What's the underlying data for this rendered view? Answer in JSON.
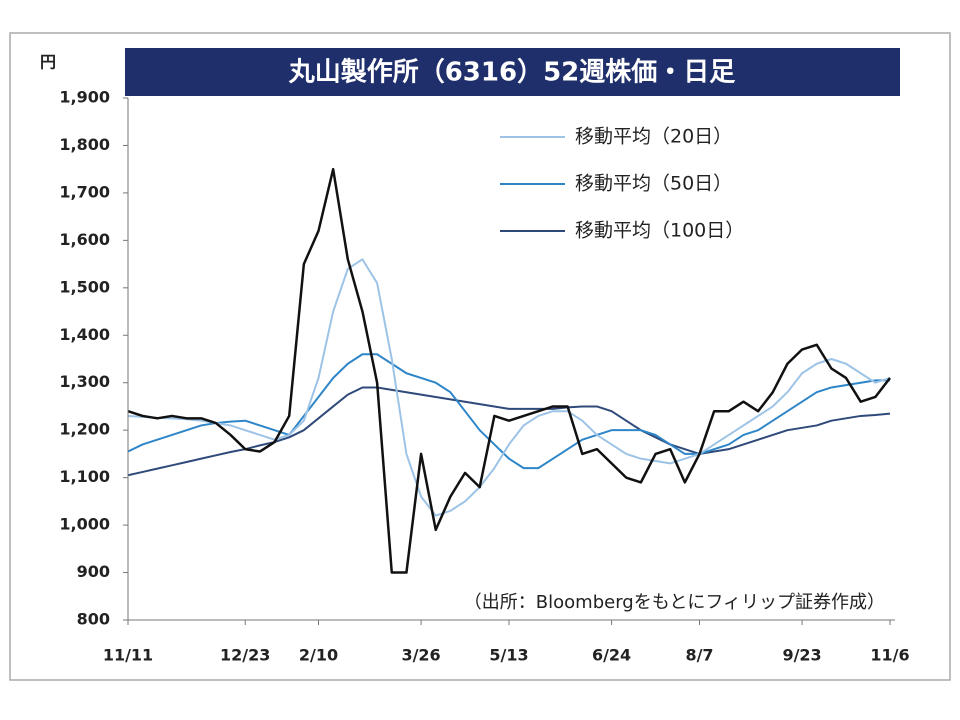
{
  "chart_data": {
    "type": "line",
    "title": "丸山製作所（6316）52週株価・日足",
    "y_unit": "円",
    "note": "（出所：Bloombergをもとにフィリップ証券作成）",
    "legend": "upper right",
    "categories": [
      "11/11",
      null,
      null,
      null,
      null,
      null,
      null,
      null,
      "12/23",
      null,
      null,
      null,
      null,
      "2/10",
      null,
      null,
      null,
      null,
      null,
      null,
      "3/26",
      null,
      null,
      null,
      null,
      null,
      "5/13",
      null,
      null,
      null,
      null,
      null,
      null,
      "6/24",
      null,
      null,
      null,
      null,
      null,
      "8/7",
      null,
      null,
      null,
      null,
      null,
      null,
      "9/23",
      null,
      null,
      null,
      null,
      null,
      "11/6"
    ],
    "ylim": [
      800,
      1900
    ],
    "yticks": [
      800,
      900,
      {
        "value": 1000,
        "label": "1,000"
      },
      {
        "value": 1100,
        "label": "1,100"
      },
      {
        "value": 1200,
        "label": "1,200"
      },
      {
        "value": 1300,
        "label": "1,300"
      },
      {
        "value": 1400,
        "label": "1,400"
      },
      {
        "value": 1500,
        "label": "1,500"
      },
      {
        "value": 1600,
        "label": "1,600"
      },
      {
        "value": 1700,
        "label": "1,700"
      },
      {
        "value": 1800,
        "label": "1,800"
      },
      {
        "value": 1900,
        "label": "1,900"
      }
    ],
    "series": [
      {
        "color": "#111111",
        "values": [
          1240,
          1230,
          1225,
          1230,
          1225,
          1225,
          1215,
          1190,
          1160,
          1155,
          1175,
          1230,
          1550,
          1620,
          1750,
          1560,
          1450,
          1300,
          900,
          900,
          1150,
          990,
          1060,
          1110,
          1080,
          1230,
          1220,
          1230,
          1240,
          1250,
          1250,
          1150,
          1160,
          1130,
          1100,
          1090,
          1150,
          1160,
          1090,
          1150,
          1240,
          1240,
          1260,
          1240,
          1280,
          1340,
          1370,
          1380,
          1330,
          1310,
          1260,
          1270,
          1310
        ]
      },
      {
        "name": "移動平均（20日）",
        "color": "#9dc3e6",
        "values": [
          1230,
          1228,
          1226,
          1225,
          1223,
          1220,
          1215,
          1210,
          1200,
          1190,
          1180,
          1190,
          1220,
          1310,
          1450,
          1540,
          1560,
          1510,
          1350,
          1150,
          1060,
          1020,
          1030,
          1050,
          1080,
          1120,
          1170,
          1210,
          1230,
          1240,
          1240,
          1220,
          1190,
          1170,
          1150,
          1140,
          1135,
          1130,
          1140,
          1150,
          1170,
          1190,
          1210,
          1230,
          1250,
          1280,
          1320,
          1340,
          1350,
          1340,
          1320,
          1300,
          1310
        ]
      },
      {
        "name": "移動平均（50日）",
        "color": "#2e86c8",
        "values": [
          1155,
          1170,
          1180,
          1190,
          1200,
          1210,
          1215,
          1218,
          1220,
          1210,
          1200,
          1190,
          1230,
          1270,
          1310,
          1340,
          1360,
          1360,
          1340,
          1320,
          1310,
          1300,
          1280,
          1240,
          1200,
          1170,
          1140,
          1120,
          1120,
          1140,
          1160,
          1180,
          1190,
          1200,
          1200,
          1200,
          1190,
          1170,
          1150,
          1150,
          1160,
          1170,
          1190,
          1200,
          1220,
          1240,
          1260,
          1280,
          1290,
          1295,
          1300,
          1305,
          1305
        ]
      },
      {
        "name": "移動平均（100日）",
        "color": "#2f4a7a",
        "values": [
          1105,
          1112,
          1119,
          1126,
          1133,
          1140,
          1147,
          1154,
          1160,
          1168,
          1175,
          1185,
          1200,
          1225,
          1250,
          1275,
          1290,
          1290,
          1285,
          1280,
          1275,
          1270,
          1265,
          1260,
          1255,
          1250,
          1245,
          1245,
          1245,
          1245,
          1248,
          1250,
          1250,
          1240,
          1220,
          1200,
          1185,
          1170,
          1160,
          1150,
          1155,
          1160,
          1170,
          1180,
          1190,
          1200,
          1205,
          1210,
          1220,
          1225,
          1230,
          1232,
          1235
        ]
      }
    ]
  }
}
